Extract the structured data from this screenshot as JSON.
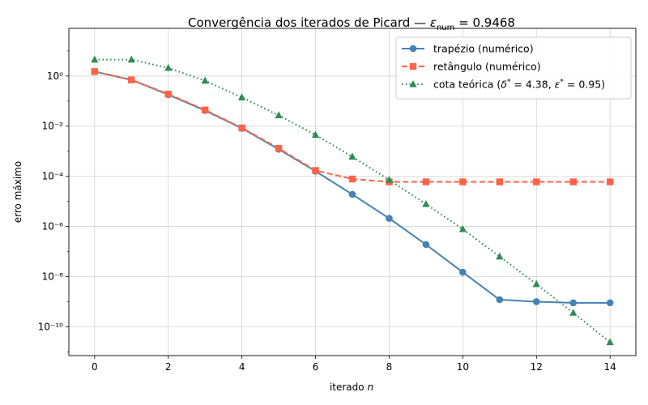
{
  "chart_data": {
    "type": "line",
    "title": "Convergência dos iterados de Picard — ε_num = 0.9468",
    "xlabel": "iterado n",
    "ylabel": "erro máximo",
    "yscale": "log",
    "xlim": [
      -0.7,
      14.7
    ],
    "ylim_log10": [
      -11.15,
      1.9
    ],
    "grid": true,
    "legend_position": "upper right",
    "x_ticks": [
      "0",
      "2",
      "4",
      "6",
      "8",
      "10",
      "12",
      "14"
    ],
    "y_ticks": [
      "10⁰",
      "10⁻²",
      "10⁻⁴",
      "10⁻⁶",
      "10⁻⁸",
      "10⁻¹⁰"
    ],
    "x": [
      0,
      1,
      2,
      3,
      4,
      5,
      6,
      7,
      8,
      9,
      10,
      11,
      12,
      13,
      14
    ],
    "series": [
      {
        "name": "trapézio (numérico)",
        "color": "#4682b4",
        "marker": "circle",
        "linestyle": "solid",
        "values": [
          1.5,
          0.7,
          0.18,
          0.042,
          0.0082,
          0.0012,
          0.00016,
          1.9e-05,
          2.1e-06,
          1.9e-07,
          1.5e-08,
          1.2e-09,
          1e-09,
          9e-10,
          9e-10
        ]
      },
      {
        "name": "retângulo (numérico)",
        "color": "#ff6347",
        "marker": "square",
        "linestyle": "dashed",
        "values": [
          1.5,
          0.7,
          0.19,
          0.044,
          0.0085,
          0.0013,
          0.00017,
          7.8e-05,
          6e-05,
          6e-05,
          6e-05,
          6e-05,
          6e-05,
          6e-05,
          6e-05
        ]
      },
      {
        "name": "cota teórica (δ* = 4.38, ε* = 0.95)",
        "color": "#2e8b57",
        "marker": "triangle",
        "linestyle": "dotted",
        "values": [
          4.5,
          4.5,
          2.1,
          0.65,
          0.14,
          0.027,
          0.0045,
          0.0006,
          7.2e-05,
          7.8e-06,
          7.8e-07,
          6.3e-08,
          5e-09,
          3.6e-10,
          2.4e-11
        ]
      }
    ]
  }
}
